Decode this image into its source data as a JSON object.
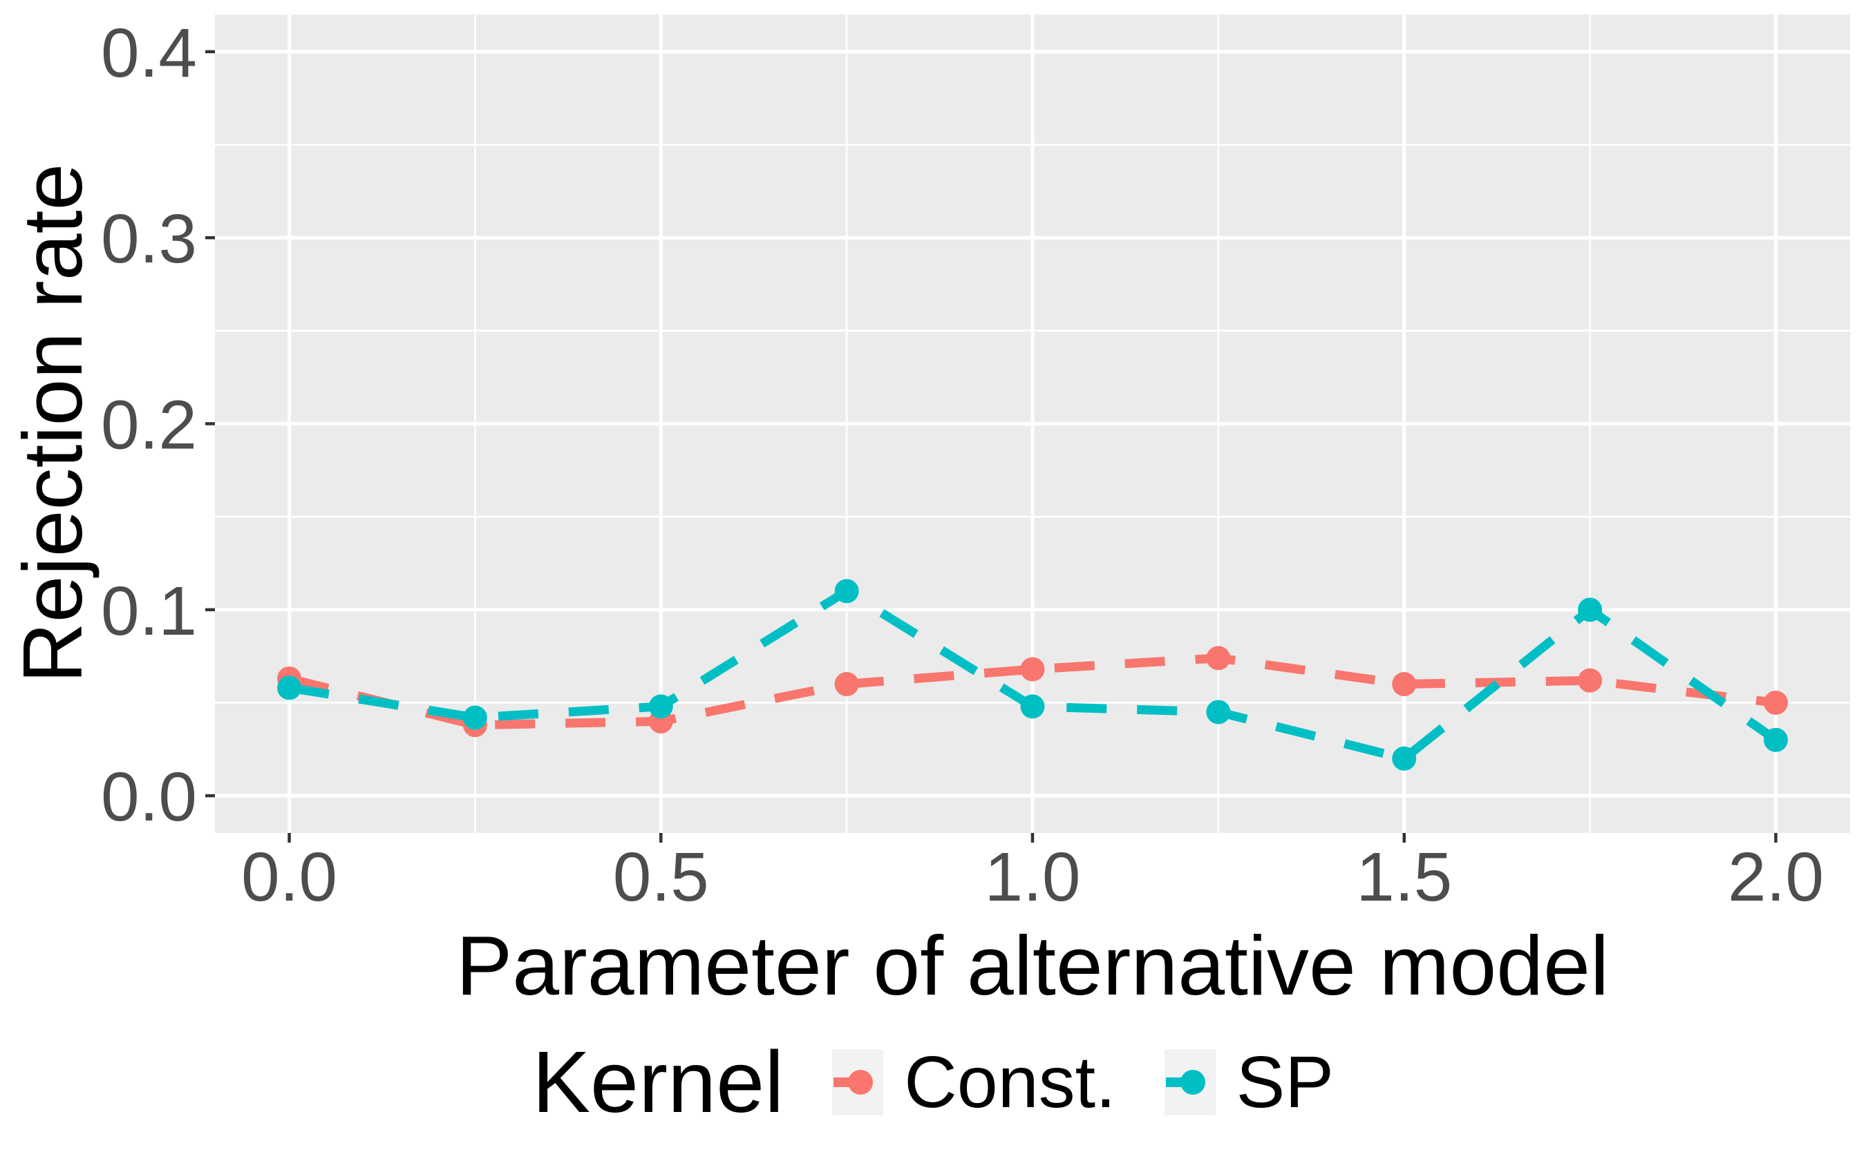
{
  "chart_data": {
    "type": "line",
    "title": "",
    "xlabel": "Parameter of alternative model",
    "ylabel": "Rejection rate",
    "legend_title": "Kernel",
    "legend_position": "bottom",
    "line_style": "dashed",
    "grid": true,
    "x": [
      0.0,
      0.25,
      0.5,
      0.75,
      1.0,
      1.25,
      1.5,
      1.75,
      2.0
    ],
    "series": [
      {
        "name": "Const.",
        "color": "#F8766D",
        "values": [
          0.063,
          0.038,
          0.04,
          0.06,
          0.068,
          0.074,
          0.06,
          0.062,
          0.05
        ]
      },
      {
        "name": "SP",
        "color": "#00BFC4",
        "values": [
          0.058,
          0.042,
          0.048,
          0.11,
          0.048,
          0.045,
          0.02,
          0.1,
          0.03
        ]
      }
    ],
    "x_ticks": {
      "values": [
        0.0,
        0.5,
        1.0,
        1.5,
        2.0
      ],
      "labels": [
        "0.0",
        "0.5",
        "1.0",
        "1.5",
        "2.0"
      ]
    },
    "y_ticks": {
      "values": [
        0.0,
        0.1,
        0.2,
        0.3,
        0.4
      ],
      "labels": [
        "0.0",
        "0.1",
        "0.2",
        "0.3",
        "0.4"
      ]
    },
    "x_minor": [
      0.25,
      0.75,
      1.25,
      1.75
    ],
    "y_minor": [
      0.05,
      0.15,
      0.25,
      0.35
    ],
    "xlim": [
      -0.1,
      2.1
    ],
    "ylim": [
      -0.02,
      0.42
    ],
    "colors": {
      "panel_background": "#EBEBEB",
      "grid_line": "#FFFFFF",
      "tick_mark": "#333333",
      "tick_label": "#4D4D4D",
      "axis_title": "#000000",
      "legend_key_background": "#F2F2F2"
    }
  }
}
